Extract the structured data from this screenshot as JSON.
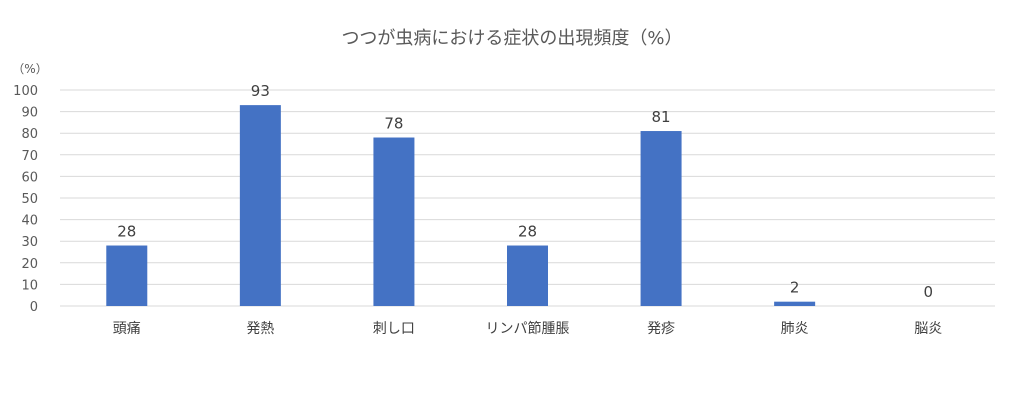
{
  "chart_data": {
    "type": "bar",
    "title": "つつが虫病における症状の出現頻度（%）",
    "unit_label": "（%）",
    "categories": [
      "頭痛",
      "発熱",
      "刺し口",
      "リンパ節腫脹",
      "発疹",
      "肺炎",
      "脳炎"
    ],
    "values": [
      28,
      93,
      78,
      28,
      81,
      2,
      0
    ],
    "data_labels": [
      "28",
      "93",
      "78",
      "28",
      "81",
      "2",
      "0"
    ],
    "ylim": [
      0,
      100
    ],
    "yticks": [
      0,
      10,
      20,
      30,
      40,
      50,
      60,
      70,
      80,
      90,
      100
    ],
    "grid": true,
    "legend": false,
    "colors": {
      "bar": "#4472C4",
      "grid": "#D9D9D9",
      "text": "#595959"
    }
  }
}
